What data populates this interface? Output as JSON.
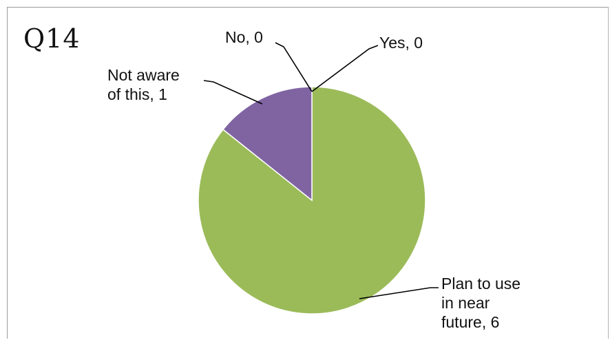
{
  "chart_data": {
    "type": "pie",
    "title": "Q14",
    "slices": [
      {
        "label": "Yes",
        "value": 0,
        "color": "#4f81bd"
      },
      {
        "label": "Plan to use in near future",
        "value": 6,
        "color": "#9bbb59"
      },
      {
        "label": "Not aware of this",
        "value": 1,
        "color": "#8064a2"
      },
      {
        "label": "No",
        "value": 0,
        "color": "#c0504d"
      }
    ],
    "data_labels": {
      "yes": "Yes, 0",
      "plan": "Plan to use\nin near\nfuture, 6",
      "not_aware": "Not aware\nof this, 1",
      "no": "No, 0"
    }
  }
}
